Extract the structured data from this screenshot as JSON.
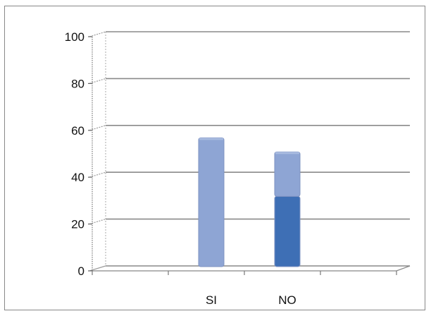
{
  "chart_data": {
    "type": "bar",
    "style": "3d-stacked-column",
    "categories": [
      "SI",
      "NO"
    ],
    "series": [
      {
        "values": [
          55,
          30
        ],
        "color": "#3e6fb5"
      },
      {
        "values": [
          0,
          19
        ],
        "color": "#8ea5d4"
      }
    ],
    "category_colors": {
      "SI": [
        "#8ea5d4"
      ],
      "NO": [
        "#3e6fb5",
        "#8ea5d4"
      ]
    },
    "y_ticks": [
      "0",
      "20",
      "40",
      "60",
      "80",
      "100"
    ],
    "ylim": [
      0,
      100
    ],
    "grid": true,
    "legend": "none"
  }
}
